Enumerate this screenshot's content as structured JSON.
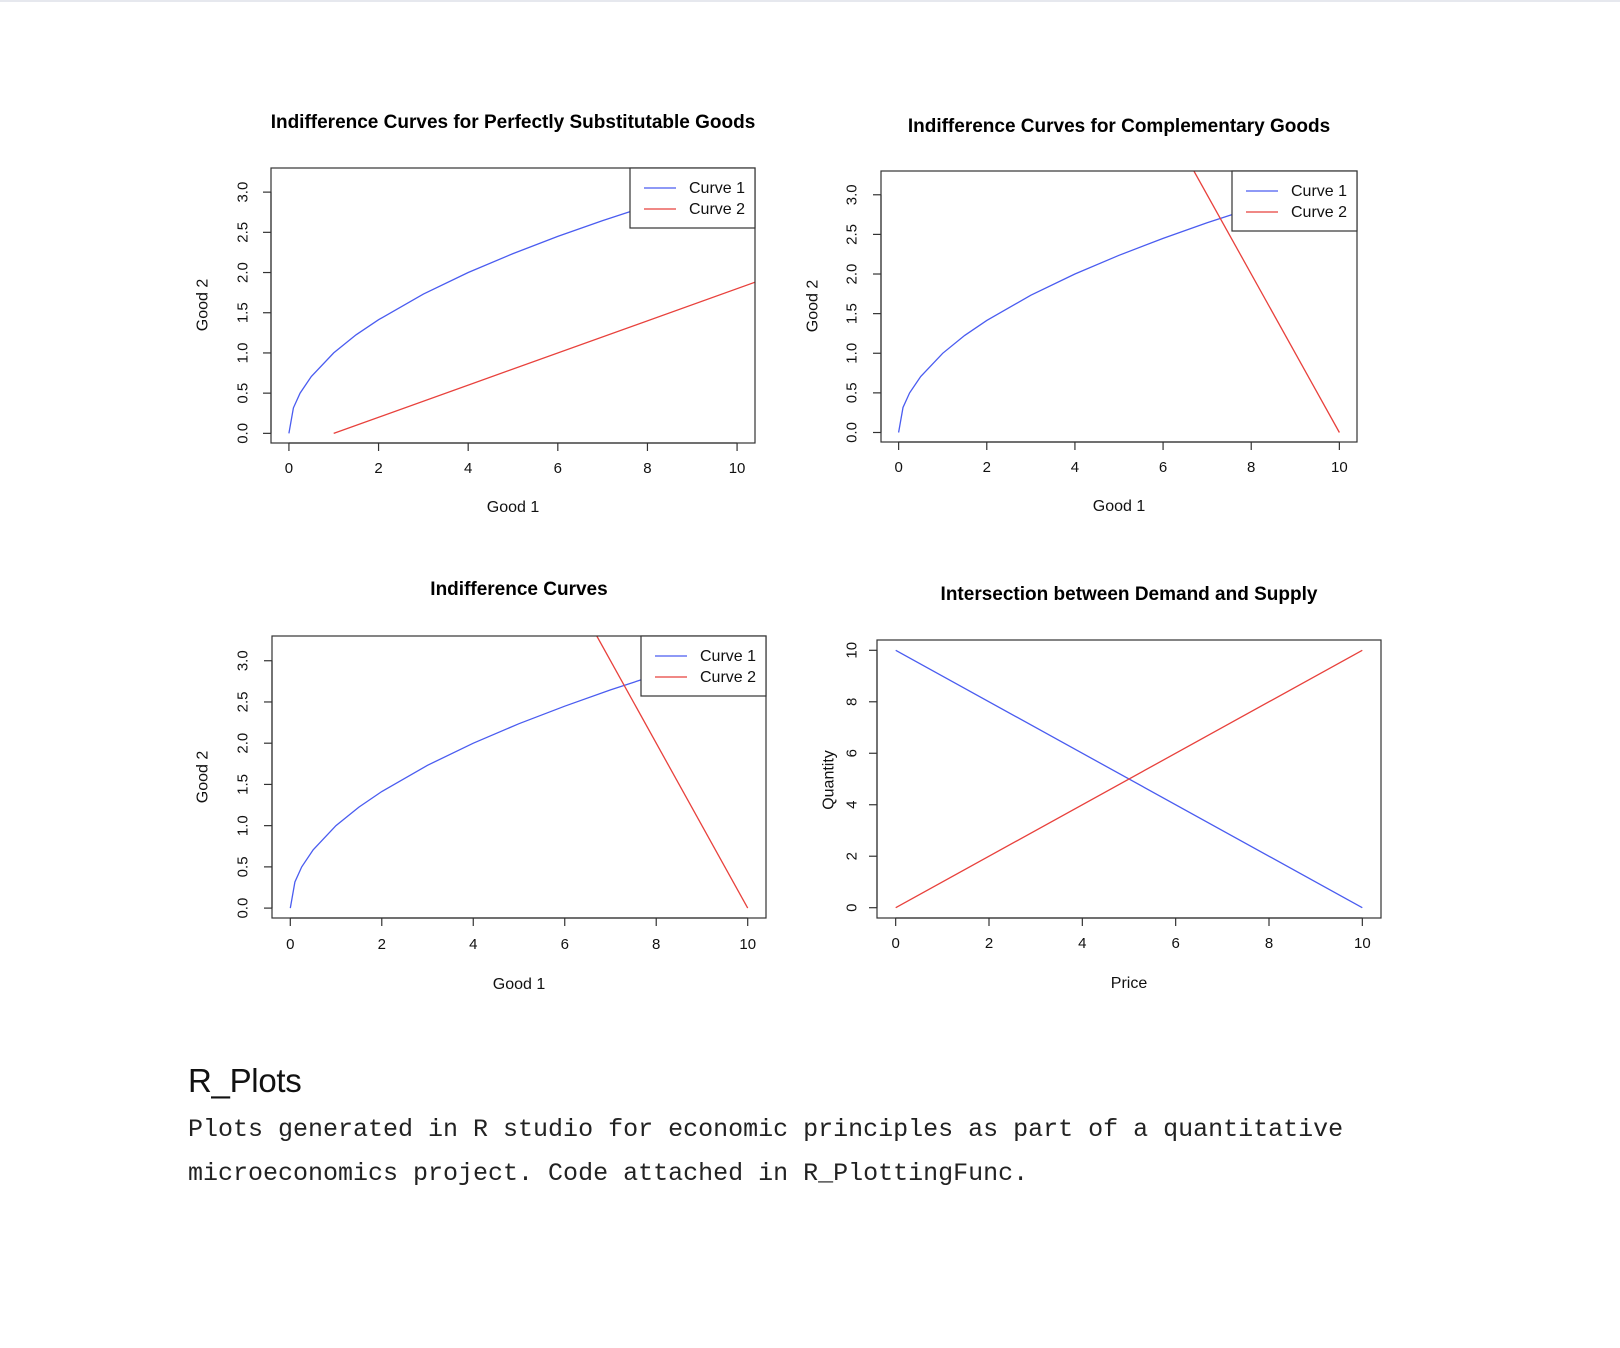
{
  "chart_data": [
    {
      "type": "line",
      "title": "Indifference Curves for Perfectly Substitutable Goods",
      "xlabel": "Good 1",
      "ylabel": "Good 2",
      "xlim": [
        -0.4,
        10.4
      ],
      "ylim": [
        -0.12,
        3.3
      ],
      "xticks": [
        0,
        2,
        4,
        6,
        8,
        10
      ],
      "yticks": [
        "0.0",
        "0.5",
        "1.0",
        "1.5",
        "2.0",
        "2.5",
        "3.0"
      ],
      "legend_position": "top-right",
      "series": [
        {
          "name": "Curve 1",
          "color": "#4a5cf0",
          "x": [
            0,
            0.1,
            0.25,
            0.5,
            1,
            1.5,
            2,
            3,
            4,
            5,
            6,
            7,
            8,
            9,
            10
          ],
          "y": [
            0,
            0.316,
            0.5,
            0.707,
            1,
            1.225,
            1.414,
            1.732,
            2,
            2.236,
            2.449,
            2.646,
            2.828,
            3,
            3.162
          ]
        },
        {
          "name": "Curve 2",
          "color": "#e8413c",
          "x": [
            1,
            10.4
          ],
          "y": [
            0,
            1.88
          ]
        }
      ]
    },
    {
      "type": "line",
      "title": "Indifference Curves for Complementary Goods",
      "xlabel": "Good 1",
      "ylabel": "Good 2",
      "xlim": [
        -0.4,
        10.4
      ],
      "ylim": [
        -0.12,
        3.3
      ],
      "xticks": [
        0,
        2,
        4,
        6,
        8,
        10
      ],
      "yticks": [
        "0.0",
        "0.5",
        "1.0",
        "1.5",
        "2.0",
        "2.5",
        "3.0"
      ],
      "legend_position": "top-right",
      "series": [
        {
          "name": "Curve 1",
          "color": "#4a5cf0",
          "x": [
            0,
            0.1,
            0.25,
            0.5,
            1,
            1.5,
            2,
            3,
            4,
            5,
            6,
            7,
            8,
            9,
            10
          ],
          "y": [
            0,
            0.316,
            0.5,
            0.707,
            1,
            1.225,
            1.414,
            1.732,
            2,
            2.236,
            2.449,
            2.646,
            2.828,
            3,
            3.162
          ]
        },
        {
          "name": "Curve 2",
          "color": "#e8413c",
          "x": [
            6.7,
            10
          ],
          "y": [
            3.3,
            0
          ]
        }
      ]
    },
    {
      "type": "line",
      "title": "Indifference Curves",
      "xlabel": "Good 1",
      "ylabel": "Good 2",
      "xlim": [
        -0.4,
        10.4
      ],
      "ylim": [
        -0.12,
        3.3
      ],
      "xticks": [
        0,
        2,
        4,
        6,
        8,
        10
      ],
      "yticks": [
        "0.0",
        "0.5",
        "1.0",
        "1.5",
        "2.0",
        "2.5",
        "3.0"
      ],
      "legend_position": "top-right",
      "series": [
        {
          "name": "Curve 1",
          "color": "#4a5cf0",
          "x": [
            0,
            0.1,
            0.25,
            0.5,
            1,
            1.5,
            2,
            3,
            4,
            5,
            6,
            7,
            8,
            9,
            10
          ],
          "y": [
            0,
            0.316,
            0.5,
            0.707,
            1,
            1.225,
            1.414,
            1.732,
            2,
            2.236,
            2.449,
            2.646,
            2.828,
            3,
            3.162
          ]
        },
        {
          "name": "Curve 2",
          "color": "#e8413c",
          "x": [
            6.7,
            10
          ],
          "y": [
            3.3,
            0
          ]
        }
      ]
    },
    {
      "type": "line",
      "title": "Intersection between Demand and Supply",
      "xlabel": "Price",
      "ylabel": "Quantity",
      "xlim": [
        -0.4,
        10.4
      ],
      "ylim": [
        -0.4,
        10.4
      ],
      "xticks": [
        0,
        2,
        4,
        6,
        8,
        10
      ],
      "yticks": [
        "0",
        "2",
        "4",
        "6",
        "8",
        "10"
      ],
      "legend_position": "none",
      "series": [
        {
          "color": "#4a5cf0",
          "x": [
            0,
            10
          ],
          "y": [
            10,
            0
          ]
        },
        {
          "color": "#e8413c",
          "x": [
            0,
            10
          ],
          "y": [
            0,
            10
          ]
        }
      ]
    }
  ],
  "caption": {
    "title": "R_Plots",
    "text": "Plots generated in R studio for economic principles as part of a quantitative microeconomics project. Code attached in R_PlottingFunc."
  }
}
